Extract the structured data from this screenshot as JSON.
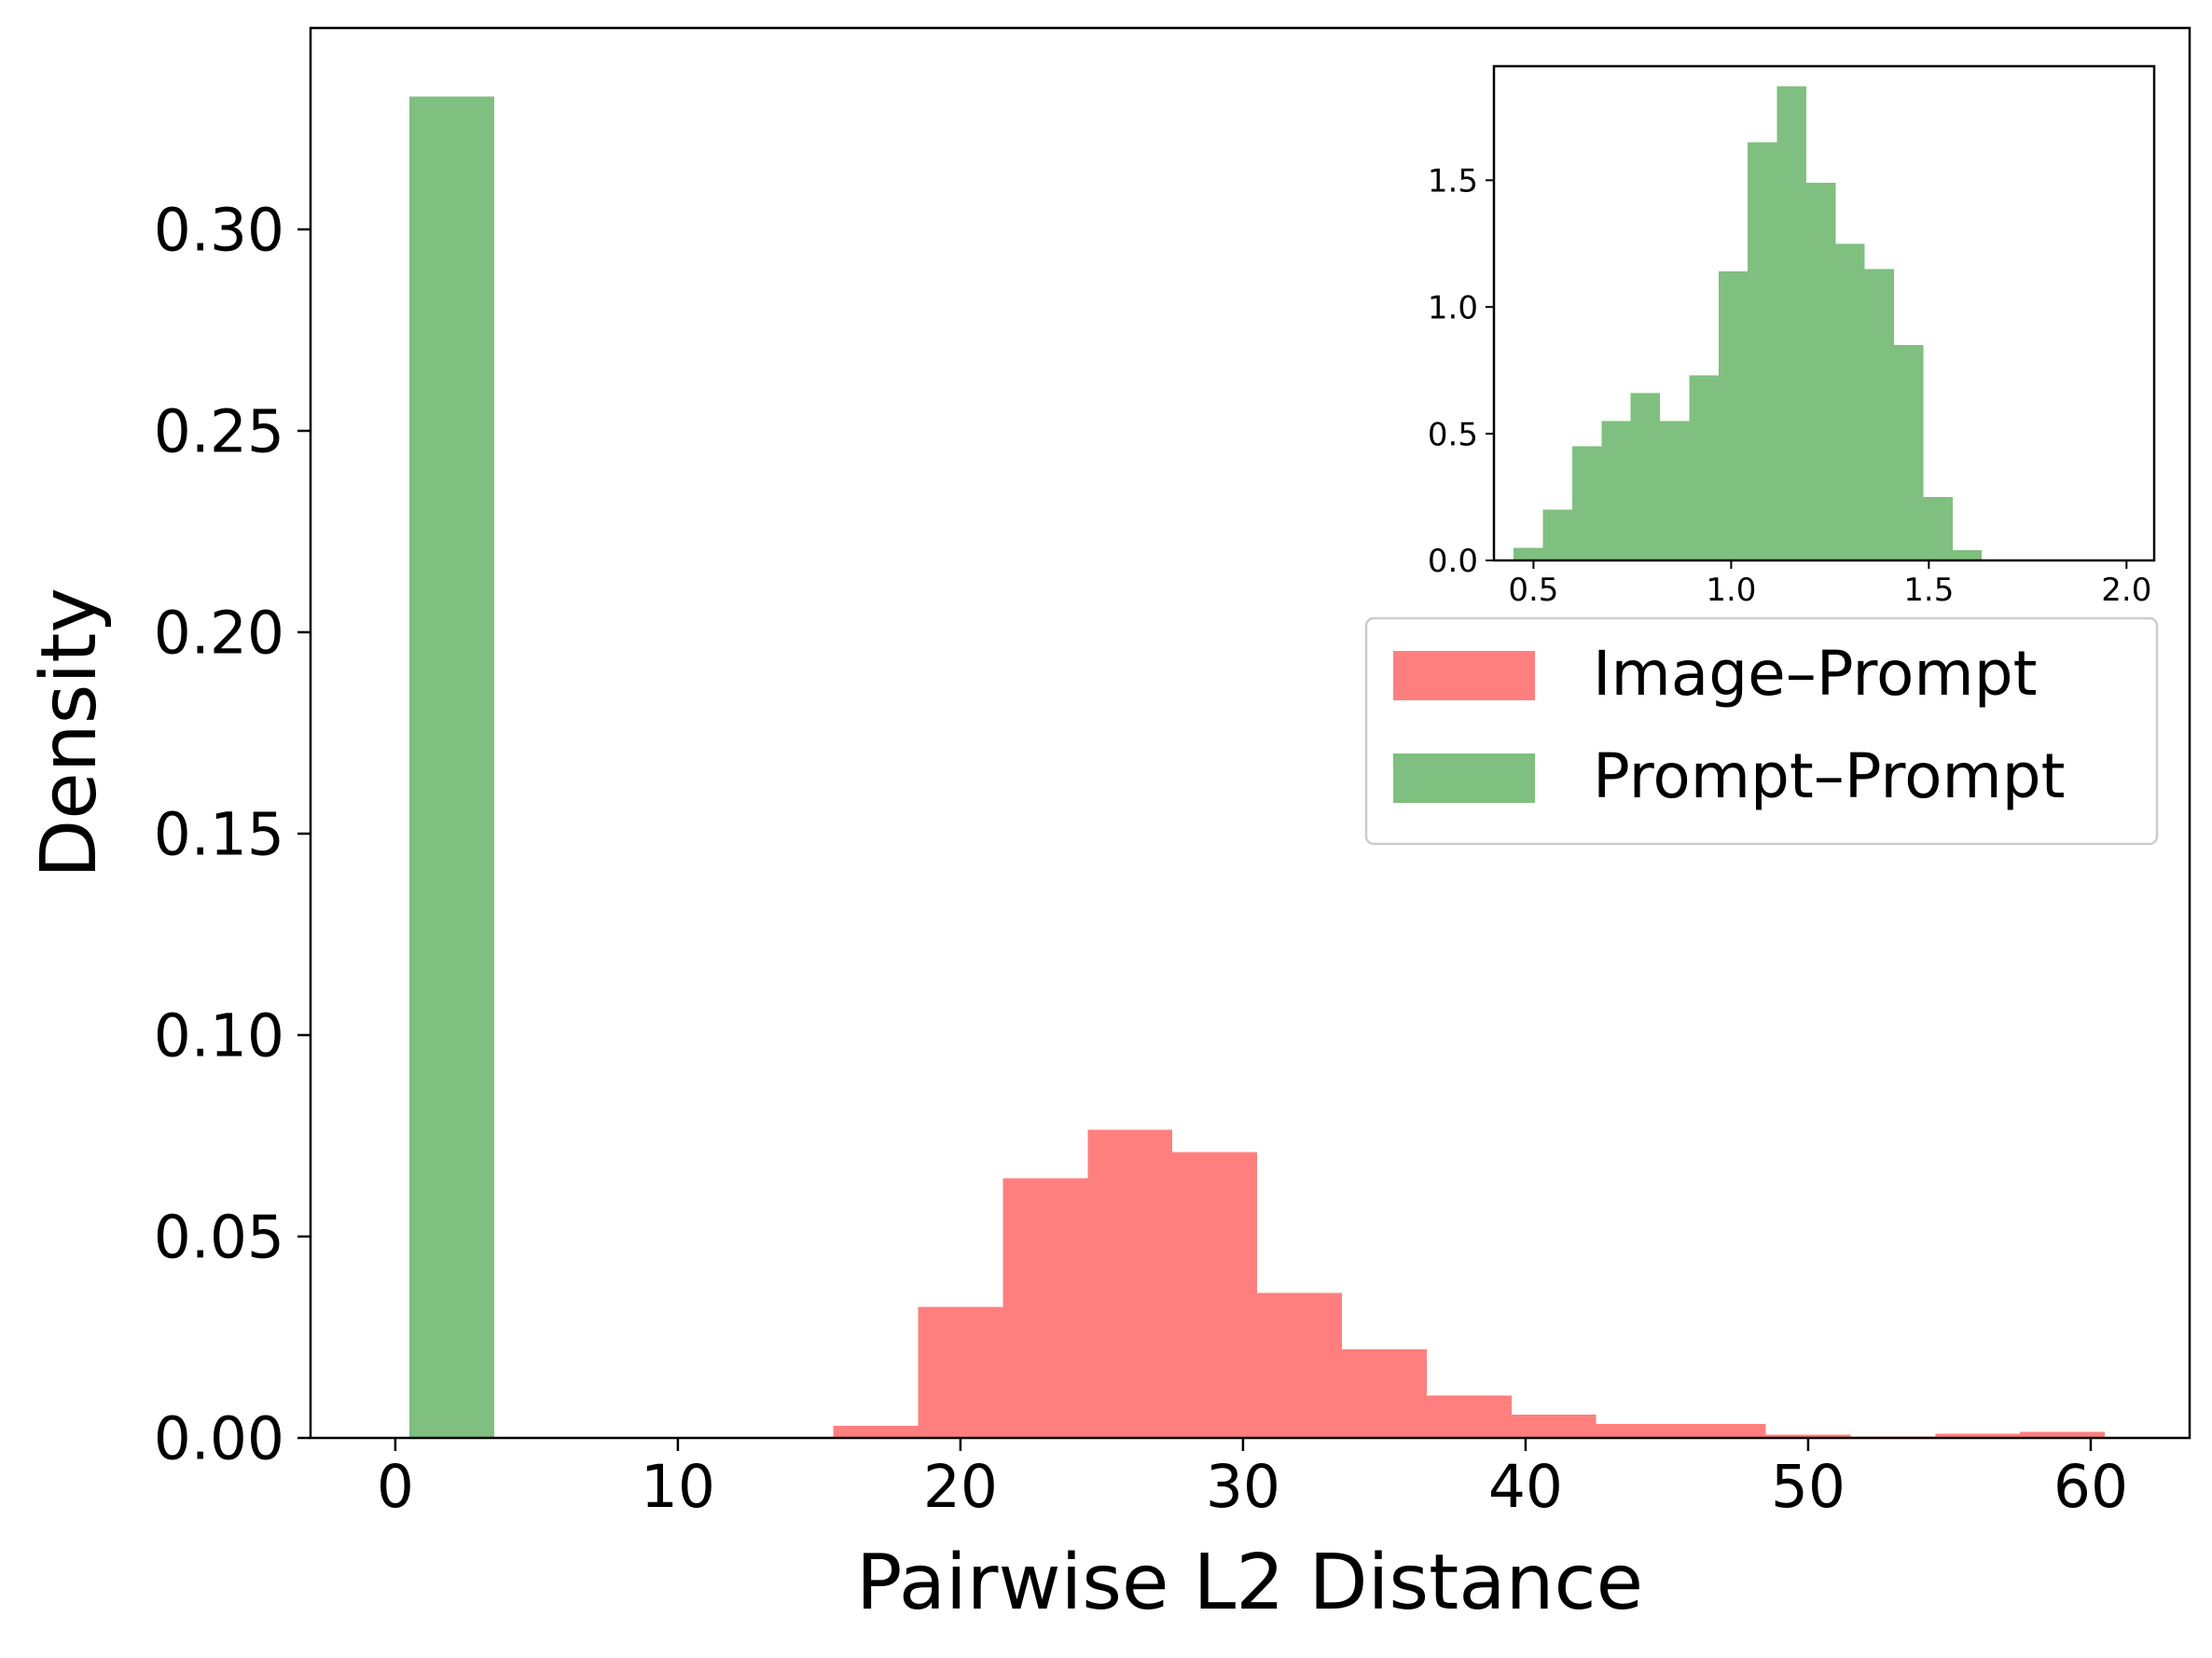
{
  "chart_data": [
    {
      "type": "histogram",
      "xlabel": "Pairwise L2 Distance",
      "ylabel": "Density",
      "xlim": [
        -3,
        63.5
      ],
      "ylim": [
        0,
        0.35
      ],
      "xticks": [
        0,
        10,
        20,
        30,
        40,
        50,
        60
      ],
      "yticks": [
        0.0,
        0.05,
        0.1,
        0.15,
        0.2,
        0.25,
        0.3
      ],
      "xtick_labels": [
        "0",
        "10",
        "20",
        "30",
        "40",
        "50",
        "60"
      ],
      "ytick_labels": [
        "0.00",
        "0.05",
        "0.10",
        "0.15",
        "0.20",
        "0.25",
        "0.30"
      ],
      "grid": false,
      "legend": {
        "position": "right, below inset",
        "entries": [
          {
            "label": "Image–Prompt",
            "color": "#ff7f7f"
          },
          {
            "label": "Prompt–Prompt",
            "color": "#7fbf7f"
          }
        ]
      },
      "series": [
        {
          "name": "Image–Prompt",
          "color": "#ff7f7f",
          "bins": [
            {
              "x0": 15.5,
              "x1": 18.5,
              "value": 0.003
            },
            {
              "x0": 18.5,
              "x1": 21.5,
              "value": 0.0325
            },
            {
              "x0": 21.5,
              "x1": 24.5,
              "value": 0.0645
            },
            {
              "x0": 24.5,
              "x1": 27.5,
              "value": 0.0765
            },
            {
              "x0": 27.5,
              "x1": 30.5,
              "value": 0.071
            },
            {
              "x0": 30.5,
              "x1": 33.5,
              "value": 0.036
            },
            {
              "x0": 33.5,
              "x1": 36.5,
              "value": 0.022
            },
            {
              "x0": 36.5,
              "x1": 39.5,
              "value": 0.0105
            },
            {
              "x0": 39.5,
              "x1": 42.5,
              "value": 0.0058
            },
            {
              "x0": 42.5,
              "x1": 45.5,
              "value": 0.0035
            },
            {
              "x0": 45.5,
              "x1": 48.5,
              "value": 0.0035
            },
            {
              "x0": 48.5,
              "x1": 51.5,
              "value": 0.0008
            },
            {
              "x0": 51.5,
              "x1": 54.5,
              "value": 0.0004
            },
            {
              "x0": 54.5,
              "x1": 57.5,
              "value": 0.001
            },
            {
              "x0": 57.5,
              "x1": 60.5,
              "value": 0.0015
            }
          ]
        },
        {
          "name": "Prompt–Prompt",
          "color": "#7fbf7f",
          "bins": [
            {
              "x0": 0.5,
              "x1": 3.5,
              "value": 0.333
            }
          ]
        }
      ]
    },
    {
      "type": "histogram",
      "role": "inset",
      "xlim": [
        0.4,
        2.07
      ],
      "ylim": [
        0,
        1.95
      ],
      "xticks": [
        0.5,
        1.0,
        1.5,
        2.0
      ],
      "yticks": [
        0.0,
        0.5,
        1.0,
        1.5
      ],
      "xtick_labels": [
        "0.5",
        "1.0",
        "1.5",
        "2.0"
      ],
      "ytick_labels": [
        "0.0",
        "0.5",
        "1.0",
        "1.5"
      ],
      "grid": false,
      "series": [
        {
          "color": "#7fbf7f",
          "bins": [
            {
              "x0": 0.45,
              "x1": 0.524,
              "value": 0.05
            },
            {
              "x0": 0.524,
              "x1": 0.598,
              "value": 0.2
            },
            {
              "x0": 0.598,
              "x1": 0.672,
              "value": 0.45
            },
            {
              "x0": 0.672,
              "x1": 0.746,
              "value": 0.55
            },
            {
              "x0": 0.746,
              "x1": 0.82,
              "value": 0.66
            },
            {
              "x0": 0.82,
              "x1": 0.894,
              "value": 0.55
            },
            {
              "x0": 0.894,
              "x1": 0.968,
              "value": 0.73
            },
            {
              "x0": 0.968,
              "x1": 1.042,
              "value": 1.14
            },
            {
              "x0": 1.042,
              "x1": 1.116,
              "value": 1.65
            },
            {
              "x0": 1.116,
              "x1": 1.19,
              "value": 1.87
            },
            {
              "x0": 1.19,
              "x1": 1.264,
              "value": 1.49
            },
            {
              "x0": 1.264,
              "x1": 1.338,
              "value": 1.25
            },
            {
              "x0": 1.338,
              "x1": 1.412,
              "value": 1.15
            },
            {
              "x0": 1.412,
              "x1": 1.486,
              "value": 0.85
            },
            {
              "x0": 1.486,
              "x1": 1.56,
              "value": 0.25
            },
            {
              "x0": 1.56,
              "x1": 1.634,
              "value": 0.04
            }
          ]
        }
      ]
    }
  ]
}
